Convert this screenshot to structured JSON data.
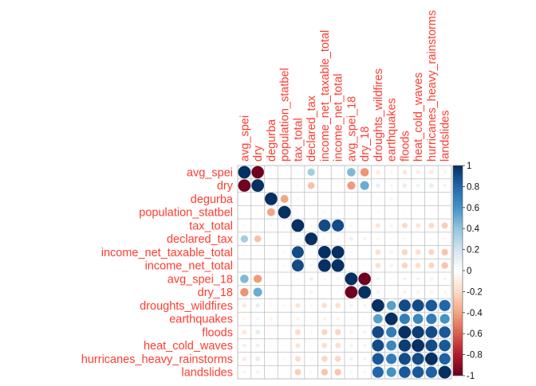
{
  "chart_data": {
    "type": "heatmap",
    "title": "",
    "subtitle": "",
    "variables": [
      "avg_spei",
      "dry",
      "degurba",
      "population_statbel",
      "tax_total",
      "declared_tax",
      "income_net_taxable_total",
      "income_net_total",
      "avg_spei_18",
      "dry_18",
      "droughts_wildfires",
      "earthquakes",
      "floods",
      "heat_cold_waves",
      "hurricanes_heavy_rainstorms",
      "landslides"
    ],
    "matrix": [
      [
        1.0,
        -0.98,
        0.03,
        0.02,
        0.05,
        0.35,
        0.03,
        0.03,
        0.45,
        -0.45,
        -0.12,
        -0.06,
        -0.13,
        -0.1,
        -0.12,
        -0.07
      ],
      [
        -0.98,
        1.0,
        -0.02,
        -0.02,
        -0.05,
        -0.3,
        -0.03,
        -0.03,
        -0.43,
        0.5,
        0.12,
        0.06,
        0.13,
        0.1,
        0.13,
        0.08
      ],
      [
        0.03,
        -0.02,
        1.0,
        -0.4,
        0.05,
        0.0,
        0.02,
        0.02,
        0.02,
        0.0,
        0.04,
        -0.06,
        0.02,
        0.03,
        0.03,
        0.02
      ],
      [
        0.02,
        -0.02,
        -0.4,
        1.0,
        0.05,
        0.02,
        0.05,
        0.05,
        0.02,
        0.0,
        0.04,
        0.0,
        0.03,
        0.02,
        0.03,
        0.02
      ],
      [
        0.05,
        -0.05,
        0.05,
        0.05,
        1.0,
        0.05,
        0.9,
        0.9,
        0.05,
        -0.03,
        -0.15,
        -0.07,
        -0.2,
        -0.15,
        -0.2,
        -0.25
      ],
      [
        0.35,
        -0.3,
        0.0,
        0.02,
        0.05,
        1.0,
        0.05,
        0.05,
        0.1,
        -0.08,
        -0.05,
        -0.03,
        -0.05,
        -0.04,
        -0.05,
        -0.05
      ],
      [
        0.03,
        -0.03,
        0.02,
        0.05,
        0.9,
        0.05,
        1.0,
        1.0,
        0.05,
        -0.03,
        -0.18,
        -0.08,
        -0.22,
        -0.18,
        -0.22,
        -0.28
      ],
      [
        0.03,
        -0.03,
        0.02,
        0.05,
        0.9,
        0.05,
        1.0,
        1.0,
        0.05,
        -0.03,
        -0.18,
        -0.08,
        -0.22,
        -0.18,
        -0.22,
        -0.28
      ],
      [
        0.45,
        -0.43,
        0.02,
        0.02,
        0.05,
        0.1,
        0.05,
        0.05,
        1.0,
        -0.98,
        0.08,
        0.04,
        0.08,
        0.08,
        0.08,
        0.06
      ],
      [
        -0.45,
        0.5,
        0.0,
        0.0,
        -0.03,
        -0.08,
        -0.03,
        -0.03,
        -0.98,
        1.0,
        -0.08,
        -0.04,
        -0.08,
        -0.08,
        -0.08,
        -0.06
      ],
      [
        -0.12,
        0.12,
        0.04,
        0.04,
        -0.15,
        -0.05,
        -0.18,
        -0.18,
        0.08,
        -0.08,
        1.0,
        0.55,
        0.9,
        0.9,
        0.85,
        0.8
      ],
      [
        -0.06,
        0.06,
        -0.06,
        0.0,
        -0.07,
        -0.03,
        -0.08,
        -0.08,
        0.04,
        -0.04,
        0.55,
        1.0,
        0.7,
        0.65,
        0.7,
        0.6
      ],
      [
        -0.13,
        0.13,
        0.02,
        0.03,
        -0.2,
        -0.05,
        -0.22,
        -0.22,
        0.08,
        -0.08,
        0.9,
        0.7,
        1.0,
        0.95,
        0.9,
        0.85
      ],
      [
        -0.1,
        0.1,
        0.03,
        0.02,
        -0.15,
        -0.04,
        -0.18,
        -0.18,
        0.08,
        -0.08,
        0.9,
        0.65,
        0.95,
        1.0,
        0.9,
        0.85
      ],
      [
        -0.12,
        0.13,
        0.03,
        0.03,
        -0.2,
        -0.05,
        -0.22,
        -0.22,
        0.08,
        -0.08,
        0.85,
        0.7,
        0.9,
        0.9,
        1.0,
        0.82
      ],
      [
        -0.07,
        0.08,
        0.02,
        0.02,
        -0.25,
        -0.05,
        -0.28,
        -0.28,
        0.06,
        -0.06,
        0.8,
        0.6,
        0.85,
        0.85,
        0.82,
        1.0
      ]
    ],
    "colorbar": {
      "ticks": [
        "1",
        "0.8",
        "0.6",
        "0.4",
        "0.2",
        "0",
        "-0.2",
        "-0.4",
        "-0.6",
        "-0.8",
        "-1"
      ],
      "range": [
        -1,
        1
      ]
    },
    "colors": {
      "label": "#ff3b30",
      "grid": "#bfbfbf",
      "ramp": [
        "#67001f",
        "#b2182b",
        "#d6604d",
        "#f4a582",
        "#fddbc7",
        "#ffffff",
        "#d1e5f0",
        "#92c5de",
        "#4393c3",
        "#2166ac",
        "#053061"
      ]
    },
    "grid": true,
    "legend_position": "right"
  }
}
